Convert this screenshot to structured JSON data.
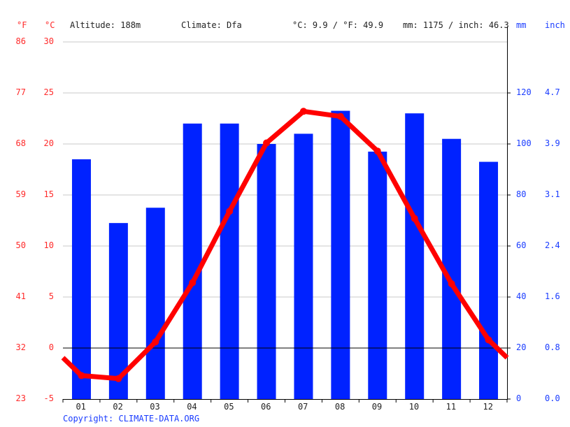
{
  "header": {
    "unit_f": "°F",
    "unit_c": "°C",
    "altitude": "Altitude: 188m",
    "climate": "Climate: Dfa",
    "avg_temp": "°C: 9.9 / °F: 49.9",
    "precip_total": "mm: 1175 / inch: 46.3",
    "unit_mm": "mm",
    "unit_inch": "inch"
  },
  "footer": {
    "copyright": "Copyright: CLIMATE-DATA.ORG"
  },
  "colors": {
    "temp": "#ff0000",
    "precip": "#0022ff",
    "grid": "#c8c8c8",
    "axis": "#000000",
    "temp_label": "#ff2a2a",
    "precip_label": "#1a3cff"
  },
  "chart_data": {
    "type": "bar+line",
    "title": "",
    "categories": [
      "01",
      "02",
      "03",
      "04",
      "05",
      "06",
      "07",
      "08",
      "09",
      "10",
      "11",
      "12"
    ],
    "series": [
      {
        "name": "Precipitation (mm)",
        "type": "bar",
        "axis": "right",
        "values": [
          94,
          69,
          75,
          108,
          108,
          100,
          104,
          113,
          97,
          112,
          102,
          93
        ]
      },
      {
        "name": "Temperature (°C)",
        "type": "line",
        "axis": "left",
        "values": [
          -2.7,
          -3.0,
          0.6,
          6.4,
          13.4,
          20.1,
          23.2,
          22.7,
          19.3,
          12.7,
          6.3,
          0.8
        ]
      }
    ],
    "left_axis_c": {
      "ticks": [
        "30",
        "25",
        "20",
        "15",
        "10",
        "5",
        "0",
        "-5"
      ],
      "ylim": [
        -5,
        30
      ]
    },
    "left_axis_f": {
      "ticks": [
        "86",
        "77",
        "68",
        "59",
        "50",
        "41",
        "32",
        "23"
      ]
    },
    "right_axis_mm": {
      "ticks": [
        "120",
        "100",
        "80",
        "60",
        "40",
        "20",
        "0"
      ],
      "ylim": [
        0,
        140
      ]
    },
    "right_axis_inch": {
      "ticks": [
        "4.7",
        "3.9",
        "3.1",
        "2.4",
        "1.6",
        "0.8",
        "0.0"
      ]
    },
    "grid": true,
    "legend": "none"
  }
}
